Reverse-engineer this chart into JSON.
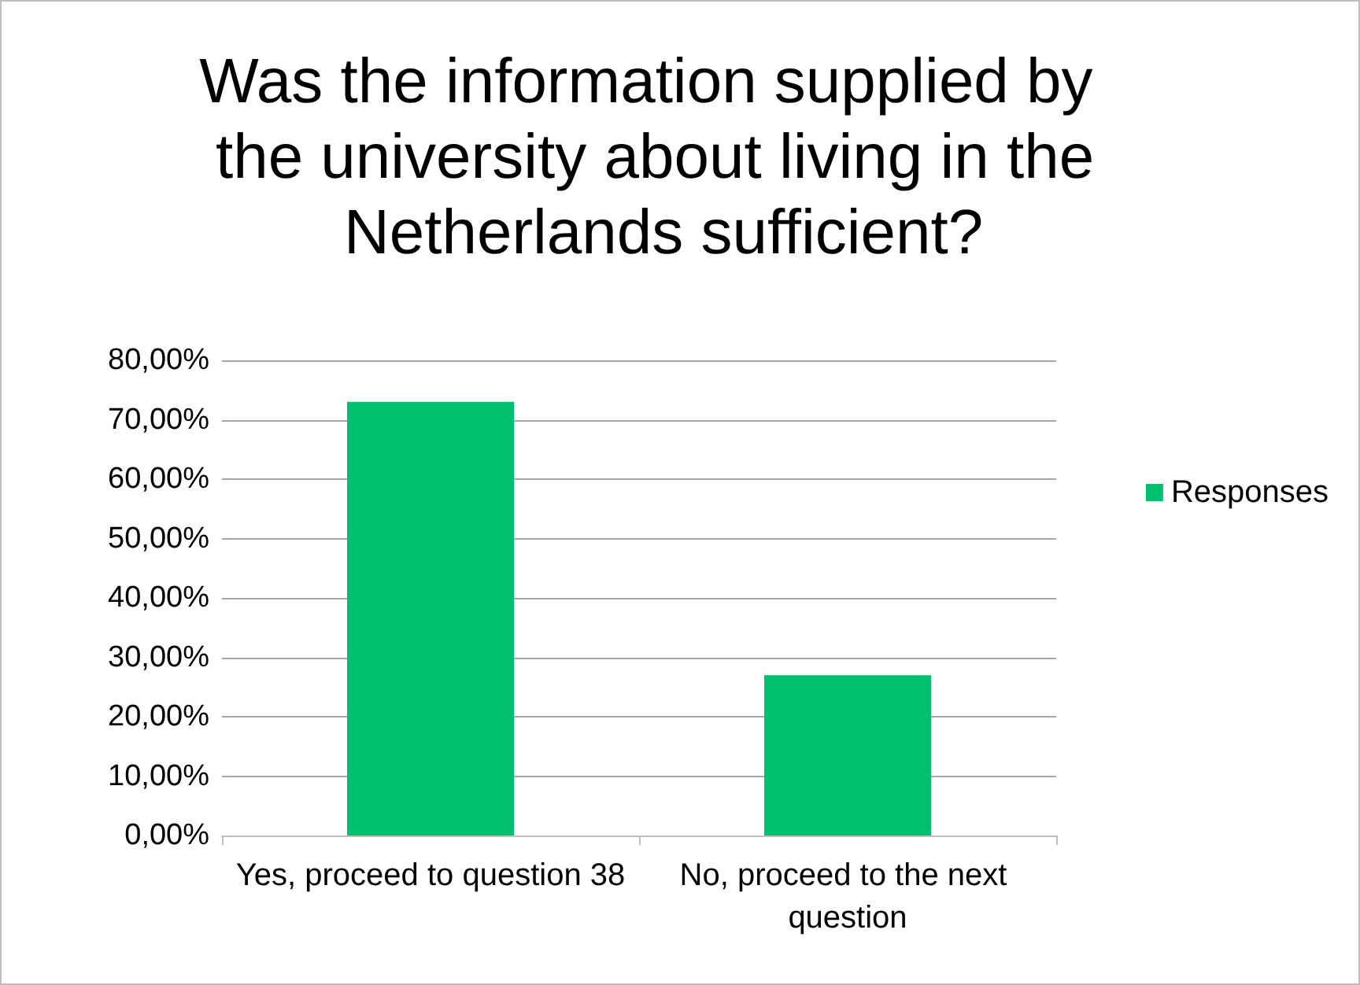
{
  "chart_data": {
    "type": "bar",
    "title": "Was the information supplied by the university about living in the Netherlands sufficient?",
    "categories": [
      "Yes, proceed to question 38",
      "No, proceed to the next question"
    ],
    "series": [
      {
        "name": "Responses",
        "color": "#00bf6f",
        "values": [
          73,
          27
        ]
      }
    ],
    "ylim": [
      0,
      80
    ],
    "yticks": [
      {
        "value": 0,
        "label": "0,00%"
      },
      {
        "value": 10,
        "label": "10,00%"
      },
      {
        "value": 20,
        "label": "20,00%"
      },
      {
        "value": 30,
        "label": "30,00%"
      },
      {
        "value": 40,
        "label": "40,00%"
      },
      {
        "value": 50,
        "label": "50,00%"
      },
      {
        "value": 60,
        "label": "60,00%"
      },
      {
        "value": 70,
        "label": "70,00%"
      },
      {
        "value": 80,
        "label": "80,00%"
      }
    ],
    "grid": "y",
    "legend": "right"
  }
}
